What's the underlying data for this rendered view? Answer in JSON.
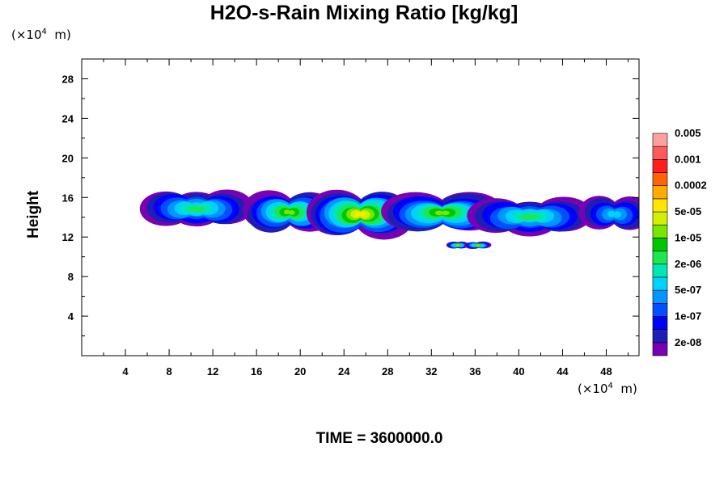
{
  "chart_data": {
    "type": "heatmap",
    "title": "H2O-s-Rain Mixing Ratio [kg/kg]",
    "ylabel": "Height",
    "x_unit": "(×10⁴ m)",
    "y_unit": "(×10⁴ m)",
    "time_label": "TIME = 3600000.0",
    "xlim": [
      0,
      51
    ],
    "ylim": [
      0,
      30
    ],
    "x_ticks": [
      4,
      8,
      12,
      16,
      20,
      24,
      28,
      32,
      36,
      40,
      44,
      48
    ],
    "y_ticks": [
      4,
      8,
      12,
      16,
      20,
      24,
      28
    ],
    "colorbar": {
      "colors": [
        "#7a00b3",
        "#1e1eb4",
        "#0000ff",
        "#0050ff",
        "#0096ff",
        "#00d2ff",
        "#00e6b4",
        "#1ee650",
        "#00c800",
        "#78e600",
        "#d2f000",
        "#ffe600",
        "#ffaa00",
        "#ff6400",
        "#ff1e1e",
        "#ff5a5a",
        "#ffa0a0"
      ],
      "labels": [
        "2e-08",
        "1e-07",
        "5e-07",
        "2e-06",
        "1e-05",
        "5e-05",
        "0.0002",
        "0.001",
        "0.005"
      ]
    },
    "cloud_bands": [
      {
        "x": [
          0,
          6
        ],
        "y": [
          12.2,
          16.2
        ],
        "peak": "1e-06"
      },
      {
        "x": [
          6,
          15
        ],
        "y": [
          13.1,
          16.6
        ],
        "peak": "2e-06"
      },
      {
        "x": [
          16,
          22
        ],
        "y": [
          12.5,
          16.5
        ],
        "peak": "1e-05"
      },
      {
        "x": [
          22,
          29
        ],
        "y": [
          12.0,
          16.6
        ],
        "peak": "5e-05"
      },
      {
        "x": [
          29,
          37
        ],
        "y": [
          12.5,
          16.4
        ],
        "peak": "1e-05"
      },
      {
        "x": [
          36,
          46
        ],
        "y": [
          12.3,
          15.8
        ],
        "peak": "2e-06"
      },
      {
        "x": [
          33.8,
          35
        ],
        "y": [
          10.8,
          11.5
        ],
        "peak": "1e-05"
      },
      {
        "x": [
          35.5,
          37
        ],
        "y": [
          10.8,
          11.5
        ],
        "peak": "1e-05"
      },
      {
        "x": [
          46.5,
          51
        ],
        "y": [
          12.6,
          16.0
        ],
        "peak": "5e-07"
      }
    ]
  }
}
